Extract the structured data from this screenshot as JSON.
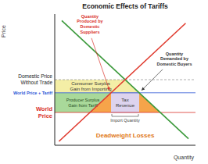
{
  "chart_data": {
    "type": "line",
    "title": "Economic Effects of Tariffs",
    "x_label": "Quantity",
    "y_label": "Price",
    "xlim": [
      0,
      10
    ],
    "ylim": [
      0,
      10
    ],
    "tick_labels": false,
    "grid": false,
    "series": [
      {
        "color": "#3c9a3c",
        "x": [
          0.5,
          9.5
        ],
        "values": [
          9.5,
          0.5
        ]
      },
      {
        "color": "#e03a2e",
        "x": [
          0.3,
          9.3
        ],
        "values": [
          0.3,
          9.3
        ]
      }
    ],
    "price_levels": [
      {
        "label": [
          "Domestic Price",
          "Without Trade"
        ],
        "value": 5,
        "color": "#222222"
      },
      {
        "label": [
          "World Price + Tariff"
        ],
        "value": 4,
        "color": "#2a55d6"
      },
      {
        "label": [
          "World",
          "Price"
        ],
        "value": 2.5,
        "color": "#d9302a"
      }
    ],
    "regions": [
      {
        "label": [
          "Consumer Surplus",
          "Gain from Importing"
        ],
        "color": "#f4eea6",
        "parts": [
          {
            "x": [
              0,
              5,
              6
            ],
            "lower": [
              4,
              4,
              4
            ],
            "upper": [
              5,
              5,
              4
            ]
          }
        ]
      },
      {
        "label": [
          "Producer Surplus",
          "Gain from Tariff"
        ],
        "color": "#a9d99a",
        "parts": [
          {
            "x": [
              0,
              2.5,
              4
            ],
            "lower": [
              2.5,
              2.5,
              4
            ],
            "upper": [
              4,
              4,
              4
            ]
          }
        ]
      },
      {
        "label": [
          "Tax",
          "Revenue"
        ],
        "color": "#ddd3ee",
        "parts": [
          {
            "x": [
              4,
              6
            ],
            "lower": [
              2.5,
              2.5
            ],
            "upper": [
              4,
              4
            ]
          }
        ]
      },
      {
        "label": [
          "Deadweight Losses"
        ],
        "color": "#f6a44a",
        "parts": [
          {
            "x": [
              2.5,
              4
            ],
            "lower": [
              2.5,
              2.5
            ],
            "upper": [
              2.5,
              4
            ]
          },
          {
            "x": [
              6,
              7.5
            ],
            "lower": [
              2.5,
              2.5
            ],
            "upper": [
              4,
              2.5
            ]
          }
        ]
      }
    ],
    "annotations": [
      {
        "label": [
          "Quantity",
          "Produced by",
          "Domestic",
          "Suppliers"
        ],
        "color": "#d9302a",
        "x": 4,
        "y": 4
      },
      {
        "label": [
          "Quantity",
          "Demanded by",
          "Domestic Buyers"
        ],
        "color": "#333333",
        "x": 6,
        "y": 4
      }
    ],
    "import_quantity": {
      "label": [
        "Import Quantity"
      ],
      "x": [
        4,
        6
      ]
    }
  }
}
